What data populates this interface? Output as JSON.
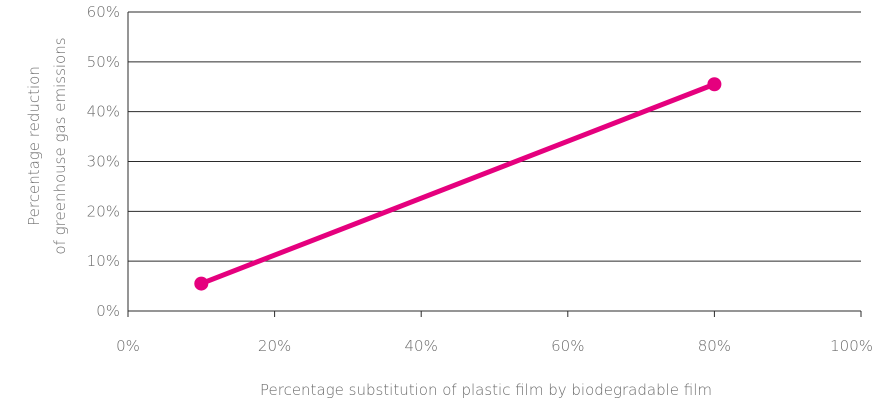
{
  "chart_data": {
    "type": "line",
    "xlabel": "Percentage substitution of plastic film by biodegradable film",
    "ylabel_lines": [
      "Percentage reduction",
      "of greenhouse gas emissions"
    ],
    "xlim": [
      0,
      100
    ],
    "ylim": [
      0,
      60
    ],
    "x_ticks": [
      0,
      20,
      40,
      60,
      80,
      100
    ],
    "x_tick_labels": [
      "0%",
      "20%",
      "40%",
      "60%",
      "80%",
      "100%"
    ],
    "y_ticks": [
      0,
      10,
      20,
      30,
      40,
      50,
      60
    ],
    "y_tick_labels": [
      "0%",
      "10%",
      "20%",
      "30%",
      "40%",
      "50%",
      "60%"
    ],
    "grid": "horizontal",
    "series": [
      {
        "color": "#e5007e",
        "points": [
          {
            "x": 10,
            "y": 5.5
          },
          {
            "x": 80,
            "y": 45.5
          }
        ]
      }
    ]
  }
}
